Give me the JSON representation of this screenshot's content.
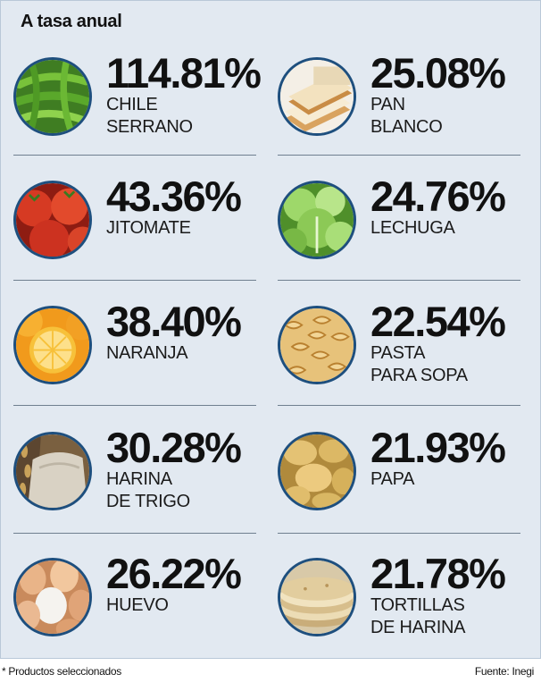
{
  "header": {
    "title": "A tasa anual"
  },
  "items": [
    {
      "pct": "114.81%",
      "line1": "CHILE",
      "line2": "SERRANO",
      "icon": "chile-serrano-icon"
    },
    {
      "pct": "25.08%",
      "line1": "PAN",
      "line2": "BLANCO",
      "icon": "bread-icon"
    },
    {
      "pct": "43.36%",
      "line1": "JITOMATE",
      "line2": "",
      "icon": "tomato-icon"
    },
    {
      "pct": "24.76%",
      "line1": "LECHUGA",
      "line2": "",
      "icon": "lettuce-icon"
    },
    {
      "pct": "38.40%",
      "line1": "NARANJA",
      "line2": "",
      "icon": "orange-icon"
    },
    {
      "pct": "22.54%",
      "line1": "PASTA",
      "line2": "PARA SOPA",
      "icon": "pasta-icon"
    },
    {
      "pct": "30.28%",
      "line1": "HARINA",
      "line2": "DE TRIGO",
      "icon": "flour-icon"
    },
    {
      "pct": "21.93%",
      "line1": "PAPA",
      "line2": "",
      "icon": "potato-icon"
    },
    {
      "pct": "26.22%",
      "line1": "HUEVO",
      "line2": "",
      "icon": "egg-icon"
    },
    {
      "pct": "21.78%",
      "line1": "TORTILLAS",
      "line2": "DE HARINA",
      "icon": "tortilla-icon"
    }
  ],
  "chart_data": {
    "type": "table",
    "title": "A tasa anual",
    "categories": [
      "CHILE SERRANO",
      "PAN BLANCO",
      "JITOMATE",
      "LECHUGA",
      "NARANJA",
      "PASTA PARA SOPA",
      "HARINA DE TRIGO",
      "PAPA",
      "HUEVO",
      "TORTILLAS DE HARINA"
    ],
    "values": [
      114.81,
      25.08,
      43.36,
      24.76,
      38.4,
      22.54,
      30.28,
      21.93,
      26.22,
      21.78
    ]
  },
  "footer": {
    "note": "* Productos seleccionados",
    "source": "Fuente: Inegi"
  }
}
